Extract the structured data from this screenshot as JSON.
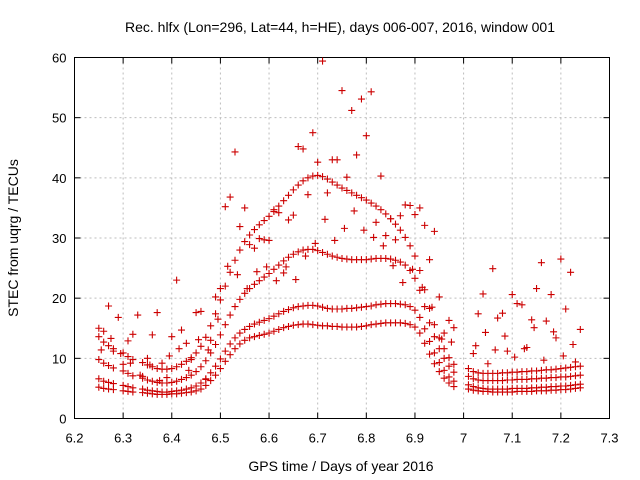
{
  "chart_data": {
    "type": "scatter",
    "title": "Rec. hlfx (Lon=296, Lat=44, h=HE), days 006-007, 2016, window 001",
    "xlabel": "GPS time / Days of year 2016",
    "ylabel": "STEC from uqrg / TECUs",
    "xlim": [
      6.2,
      7.3
    ],
    "ylim": [
      0,
      60
    ],
    "xticks": [
      6.2,
      6.3,
      6.4,
      6.5,
      6.6,
      6.7,
      6.8,
      6.9,
      7.0,
      7.1,
      7.2,
      7.3
    ],
    "xtick_labels": [
      "6.2",
      "6.3",
      "6.4",
      "6.5",
      "6.6",
      "6.7",
      "6.8",
      "6.9",
      "7",
      "7.1",
      "7.2",
      "7.3"
    ],
    "yticks": [
      0,
      10,
      20,
      30,
      40,
      50,
      60
    ],
    "ytick_labels": [
      "0",
      "10",
      "20",
      "30",
      "40",
      "50",
      "60"
    ],
    "grid": true,
    "marker": "plus",
    "color": "#cc0000",
    "series": [
      {
        "x": [
          6.25,
          6.26,
          6.27,
          6.28,
          6.3,
          6.31,
          6.32,
          6.34,
          6.35,
          6.36,
          6.37,
          6.38,
          6.39,
          6.4,
          6.41,
          6.42,
          6.43,
          6.44,
          6.45,
          6.46,
          6.47,
          6.48,
          6.49,
          6.5,
          6.51,
          6.52,
          6.53,
          6.54,
          6.55,
          6.56,
          6.57,
          6.58,
          6.59,
          6.6,
          6.61,
          6.62,
          6.63,
          6.64,
          6.65,
          6.66,
          6.67,
          6.68,
          6.69,
          6.7,
          6.71,
          6.72,
          6.73,
          6.74,
          6.75,
          6.76,
          6.77,
          6.78,
          6.79,
          6.8,
          6.81,
          6.82,
          6.83,
          6.84,
          6.85,
          6.86,
          6.87,
          6.88,
          6.89,
          6.9,
          6.91,
          6.92,
          6.93,
          6.94,
          6.95,
          6.96,
          6.97,
          6.98,
          7.01,
          7.02,
          7.03,
          7.04,
          7.05,
          7.06,
          7.07,
          7.08,
          7.09,
          7.1,
          7.11,
          7.12,
          7.13,
          7.14,
          7.15,
          7.16,
          7.17,
          7.18,
          7.19,
          7.2,
          7.21,
          7.22,
          7.23,
          7.24
        ],
        "y": [
          5.2,
          5.0,
          4.9,
          4.8,
          4.6,
          4.5,
          4.4,
          4.3,
          4.2,
          4.1,
          4.0,
          4.0,
          4.0,
          4.1,
          4.1,
          4.2,
          4.3,
          4.4,
          4.6,
          4.9,
          5.5,
          6.3,
          7.2,
          8.3,
          9.5,
          10.6,
          11.6,
          12.4,
          13.0,
          13.4,
          13.6,
          13.8,
          14.0,
          14.2,
          14.5,
          14.8,
          15.1,
          15.3,
          15.5,
          15.6,
          15.7,
          15.7,
          15.6,
          15.5,
          15.4,
          15.4,
          15.3,
          15.3,
          15.2,
          15.2,
          15.2,
          15.2,
          15.3,
          15.4,
          15.6,
          15.7,
          15.8,
          15.9,
          15.9,
          15.9,
          15.9,
          15.8,
          15.6,
          15.2,
          14.2,
          12.5,
          10.7,
          9.1,
          7.8,
          6.7,
          5.9,
          5.3,
          4.9,
          4.7,
          4.6,
          4.5,
          4.5,
          4.4,
          4.4,
          4.4,
          4.4,
          4.4,
          4.5,
          4.5,
          4.5,
          4.5,
          4.6,
          4.6,
          4.6,
          4.7,
          4.7,
          4.8,
          4.8,
          4.9,
          5.0,
          5.1
        ]
      },
      {
        "x": [
          6.25,
          6.26,
          6.27,
          6.28,
          6.3,
          6.31,
          6.32,
          6.34,
          6.35,
          6.36,
          6.37,
          6.38,
          6.39,
          6.4,
          6.41,
          6.42,
          6.43,
          6.44,
          6.45,
          6.46,
          6.47,
          6.48,
          6.49,
          6.5,
          6.51,
          6.52,
          6.53,
          6.54,
          6.55,
          6.56,
          6.57,
          6.58,
          6.59,
          6.6,
          6.61,
          6.62,
          6.63,
          6.64,
          6.65,
          6.66,
          6.67,
          6.68,
          6.69,
          6.7,
          6.71,
          6.72,
          6.73,
          6.74,
          6.75,
          6.76,
          6.77,
          6.78,
          6.79,
          6.8,
          6.81,
          6.82,
          6.83,
          6.84,
          6.85,
          6.86,
          6.87,
          6.88,
          6.89,
          6.9,
          6.91,
          6.92,
          6.93,
          6.94,
          6.95,
          6.96,
          6.97,
          6.98,
          7.01,
          7.02,
          7.03,
          7.04,
          7.05,
          7.06,
          7.07,
          7.08,
          7.09,
          7.1,
          7.11,
          7.12,
          7.13,
          7.14,
          7.15,
          7.16,
          7.17,
          7.18,
          7.19,
          7.2,
          7.21,
          7.22,
          7.23,
          7.24
        ],
        "y": [
          6.6,
          6.2,
          6.0,
          5.8,
          5.5,
          5.3,
          5.1,
          4.9,
          4.7,
          4.6,
          4.5,
          4.4,
          4.4,
          4.5,
          4.6,
          4.7,
          4.9,
          5.1,
          5.4,
          5.9,
          6.6,
          7.6,
          8.7,
          9.9,
          11.2,
          12.4,
          13.4,
          14.2,
          14.8,
          15.3,
          15.7,
          16.0,
          16.3,
          16.6,
          17.0,
          17.4,
          17.8,
          18.1,
          18.4,
          18.6,
          18.7,
          18.8,
          18.8,
          18.7,
          18.5,
          18.3,
          18.2,
          18.2,
          18.2,
          18.3,
          18.3,
          18.4,
          18.5,
          18.6,
          18.7,
          18.9,
          19.0,
          19.1,
          19.1,
          19.1,
          19.0,
          18.9,
          18.6,
          18.0,
          16.8,
          14.9,
          12.8,
          10.9,
          9.3,
          8.0,
          6.9,
          6.2,
          5.6,
          5.3,
          5.1,
          5.0,
          4.9,
          4.9,
          4.9,
          4.9,
          4.9,
          5.0,
          5.0,
          5.0,
          5.0,
          5.1,
          5.1,
          5.2,
          5.2,
          5.3,
          5.3,
          5.4,
          5.4,
          5.5,
          5.6,
          5.7
        ]
      },
      {
        "x": [
          6.25,
          6.26,
          6.27,
          6.28,
          6.3,
          6.31,
          6.32,
          6.34,
          6.35,
          6.36,
          6.37,
          6.38,
          6.39,
          6.4,
          6.41,
          6.42,
          6.43,
          6.44,
          6.45,
          6.46,
          6.47,
          6.48,
          6.49,
          6.5,
          6.51,
          6.52,
          6.53,
          6.54,
          6.55,
          6.56,
          6.57,
          6.58,
          6.59,
          6.6,
          6.61,
          6.62,
          6.63,
          6.64,
          6.65,
          6.66,
          6.67,
          6.68,
          6.69,
          6.7,
          6.71,
          6.72,
          6.73,
          6.74,
          6.75,
          6.76,
          6.77,
          6.78,
          6.79,
          6.8,
          6.81,
          6.82,
          6.83,
          6.84,
          6.85,
          6.86,
          6.87,
          6.88,
          6.89,
          6.9,
          6.91,
          6.92,
          6.93,
          6.94,
          6.95,
          6.96,
          6.97,
          6.98,
          7.01,
          7.02,
          7.03,
          7.04,
          7.05,
          7.06,
          7.07,
          7.08,
          7.09,
          7.1,
          7.11,
          7.12,
          7.13,
          7.14,
          7.15,
          7.16,
          7.17,
          7.18,
          7.19,
          7.2,
          7.21,
          7.22,
          7.23,
          7.24
        ],
        "y": [
          9.8,
          9.2,
          8.8,
          8.4,
          7.9,
          7.5,
          7.1,
          6.7,
          6.4,
          6.2,
          6.0,
          5.9,
          5.9,
          6.0,
          6.2,
          6.5,
          6.8,
          7.2,
          7.8,
          8.6,
          9.6,
          10.9,
          12.3,
          13.9,
          15.6,
          17.2,
          18.6,
          19.8,
          20.8,
          21.6,
          22.3,
          22.9,
          23.5,
          24.1,
          24.8,
          25.5,
          26.2,
          26.8,
          27.3,
          27.7,
          28.0,
          28.1,
          28.1,
          27.9,
          27.6,
          27.3,
          27.0,
          26.8,
          26.6,
          26.5,
          26.4,
          26.4,
          26.4,
          26.4,
          26.5,
          26.6,
          26.6,
          26.6,
          26.5,
          26.3,
          26.0,
          25.5,
          24.6,
          23.3,
          21.3,
          18.6,
          15.9,
          13.6,
          11.6,
          10.0,
          8.7,
          7.7,
          7.0,
          6.6,
          6.4,
          6.3,
          6.3,
          6.3,
          6.3,
          6.3,
          6.4,
          6.4,
          6.5,
          6.5,
          6.5,
          6.6,
          6.6,
          6.7,
          6.7,
          6.8,
          6.8,
          6.9,
          6.9,
          7.0,
          7.1,
          7.2
        ]
      },
      {
        "x": [
          6.25,
          6.26,
          6.27,
          6.28,
          6.3,
          6.31,
          6.32,
          6.34,
          6.35,
          6.36,
          6.37,
          6.38,
          6.39,
          6.4,
          6.41,
          6.42,
          6.43,
          6.44,
          6.45,
          6.46,
          6.47,
          6.48,
          6.49,
          6.5,
          6.51,
          6.52,
          6.53,
          6.54,
          6.55,
          6.56,
          6.57,
          6.58,
          6.59,
          6.6,
          6.61,
          6.62,
          6.63,
          6.64,
          6.65,
          6.66,
          6.67,
          6.68,
          6.69,
          6.7,
          6.71,
          6.72,
          6.73,
          6.74,
          6.75,
          6.76,
          6.77,
          6.78,
          6.79,
          6.8,
          6.81,
          6.82,
          6.83,
          6.84,
          6.85,
          6.86,
          6.87,
          6.88,
          6.89,
          6.9,
          6.91,
          6.92,
          6.93,
          6.94,
          6.95,
          6.96,
          6.97,
          6.98,
          7.01,
          7.02,
          7.03,
          7.04,
          7.05,
          7.06,
          7.07,
          7.08,
          7.09,
          7.1,
          7.11,
          7.12,
          7.13,
          7.14,
          7.15,
          7.16,
          7.17,
          7.18,
          7.19,
          7.2,
          7.21,
          7.22,
          7.23,
          7.24
        ],
        "y": [
          13.6,
          12.7,
          12.1,
          11.6,
          10.9,
          10.3,
          9.8,
          9.3,
          8.9,
          8.6,
          8.3,
          8.2,
          8.2,
          8.3,
          8.6,
          9.0,
          9.5,
          10.1,
          10.9,
          12.0,
          13.5,
          15.4,
          17.4,
          19.7,
          22.0,
          24.3,
          26.3,
          28.0,
          29.4,
          30.5,
          31.4,
          32.2,
          32.9,
          33.6,
          34.4,
          35.3,
          36.2,
          37.1,
          38.0,
          38.8,
          39.5,
          40.0,
          40.3,
          40.4,
          40.2,
          39.8,
          39.3,
          38.8,
          38.3,
          37.9,
          37.5,
          37.1,
          36.7,
          36.3,
          35.8,
          35.3,
          34.7,
          34.0,
          33.2,
          32.3,
          31.3,
          30.1,
          28.7,
          27.0,
          24.6,
          21.4,
          18.3,
          15.6,
          13.4,
          11.6,
          10.1,
          9.0,
          8.3,
          7.8,
          7.6,
          7.5,
          7.5,
          7.5,
          7.5,
          7.6,
          7.6,
          7.7,
          7.7,
          7.8,
          7.8,
          7.9,
          7.9,
          8.0,
          8.1,
          8.1,
          8.2,
          8.3,
          8.4,
          8.5,
          8.6,
          8.7
        ]
      },
      {
        "x": [
          6.25,
          6.27,
          6.29,
          6.31,
          6.33,
          6.35,
          6.37,
          6.39,
          6.41,
          6.43,
          6.45,
          6.47,
          6.49,
          6.51,
          6.53,
          6.55,
          6.57,
          6.59,
          6.61,
          6.63,
          6.65,
          6.67,
          6.69,
          6.71,
          6.73,
          6.75,
          6.77,
          6.79,
          6.81,
          6.83,
          6.85,
          6.87,
          6.89,
          6.91,
          6.93,
          6.95,
          6.97,
          7.02,
          7.04,
          7.06,
          7.08,
          7.1,
          7.12,
          7.14,
          7.16,
          7.18,
          7.2,
          7.22,
          7.24
        ],
        "y": [
          15.0,
          18.7,
          16.8,
          12.9,
          17.2,
          10.0,
          17.6,
          6.8,
          23.0,
          12.5,
          17.6,
          6.5,
          20.2,
          35.2,
          44.3,
          35.0,
          28.3,
          29.7,
          34.7,
          24.2,
          33.8,
          44.8,
          47.5,
          59.4,
          43.0,
          54.5,
          51.2,
          53.1,
          54.3,
          40.3,
          33.2,
          33.7,
          35.4,
          35.0,
          26.4,
          20.2,
          16.3,
          10.8,
          20.7,
          24.9,
          17.5,
          20.6,
          18.9,
          16.4,
          25.9,
          20.6,
          26.5,
          24.3,
          14.8
        ]
      },
      {
        "x": [
          6.26,
          6.28,
          6.3,
          6.32,
          6.34,
          6.36,
          6.38,
          6.4,
          6.42,
          6.44,
          6.46,
          6.48,
          6.5,
          6.52,
          6.54,
          6.56,
          6.58,
          6.6,
          6.62,
          6.64,
          6.66,
          6.68,
          6.7,
          6.72,
          6.74,
          6.76,
          6.78,
          6.8,
          6.82,
          6.84,
          6.86,
          6.88,
          6.9,
          6.92,
          6.94,
          6.96,
          6.98,
          7.03,
          7.05,
          7.07,
          7.09,
          7.11,
          7.13,
          7.15,
          7.17,
          7.19,
          7.21,
          7.23
        ],
        "y": [
          14.5,
          11.2,
          9.0,
          14.0,
          7.0,
          13.9,
          9.2,
          13.6,
          14.7,
          9.8,
          17.8,
          13.0,
          21.6,
          36.8,
          31.9,
          28.9,
          29.9,
          29.6,
          34.2,
          33.0,
          45.2,
          37.2,
          42.6,
          37.5,
          43.0,
          40.1,
          43.8,
          47.0,
          32.6,
          30.4,
          29.7,
          35.5,
          33.9,
          32.1,
          31.1,
          14.2,
          15.1,
          17.4,
          9.1,
          16.7,
          11.2,
          19.1,
          11.8,
          21.6,
          16.2,
          13.4,
          18.2,
          9.4
        ]
      },
      {
        "x": [
          6.255,
          6.275,
          6.295,
          6.315,
          6.335,
          6.355,
          6.375,
          6.395,
          6.415,
          6.435,
          6.455,
          6.475,
          6.495,
          6.515,
          6.535,
          6.555,
          6.575,
          6.595,
          6.615,
          6.635,
          6.655,
          6.675,
          6.695,
          6.715,
          6.735,
          6.755,
          6.775,
          6.795,
          6.815,
          6.835,
          6.855,
          6.875,
          6.895,
          6.915,
          6.935,
          6.955,
          6.975,
          7.025,
          7.045,
          7.065,
          7.085,
          7.105,
          7.125,
          7.145,
          7.165,
          7.185,
          7.205,
          7.225
        ],
        "y": [
          11.4,
          13.3,
          10.8,
          9.2,
          7.2,
          8.9,
          6.3,
          10.4,
          11.6,
          8.0,
          13.1,
          11.4,
          16.5,
          25.3,
          23.9,
          21.6,
          24.4,
          25.2,
          22.9,
          25.2,
          23.1,
          27.0,
          29.1,
          33.1,
          29.6,
          31.6,
          34.5,
          31.3,
          30.1,
          28.7,
          25.4,
          22.6,
          24.8,
          21.8,
          18.5,
          13.2,
          12.7,
          12.1,
          14.3,
          11.4,
          13.7,
          10.2,
          11.6,
          15.1,
          9.7,
          14.4,
          10.4,
          12.3
        ]
      }
    ]
  }
}
